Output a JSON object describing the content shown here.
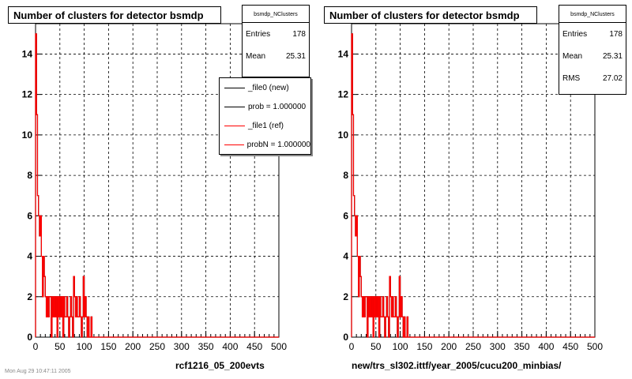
{
  "colors": {
    "new": "#000000",
    "ref": "#ff0000",
    "grid": "#000000"
  },
  "panels": [
    {
      "title": "Number of clusters for detector bsmdp",
      "stats": {
        "name": "bsmdp_NClusters",
        "rows": [
          {
            "label": "Entries",
            "value": "178"
          },
          {
            "label": "Mean",
            "value": "25.31"
          }
        ]
      },
      "legend": [
        {
          "label": "_file0 (new)",
          "color": "#000000"
        },
        {
          "label": "prob = 1.000000",
          "color": "#000000"
        },
        {
          "label": "_file1 (ref)",
          "color": "#ff0000"
        },
        {
          "label": "probN = 1.000000",
          "color": "#ff0000"
        }
      ],
      "footer": "rcf1216_05_200evts"
    },
    {
      "title": "Number of clusters for detector bsmdp",
      "stats": {
        "name": "bsmdp_NClusters",
        "rows": [
          {
            "label": "Entries",
            "value": "178"
          },
          {
            "label": "Mean",
            "value": "25.31"
          },
          {
            "label": "RMS",
            "value": "27.02"
          }
        ]
      },
      "legend": [],
      "footer": "new/trs_sl302.ittf/year_2005/cucu200_minbias/"
    }
  ],
  "faint_text": "Mon Aug 29 10:47:11 2005",
  "chart_data": [
    {
      "type": "histogram",
      "title": "Number of clusters for detector bsmdp",
      "xlim": [
        0,
        500
      ],
      "ylim": [
        0,
        15.5
      ],
      "xticks": [
        0,
        50,
        100,
        150,
        200,
        250,
        300,
        350,
        400,
        450,
        500
      ],
      "yticks": [
        0,
        2,
        4,
        6,
        8,
        10,
        12,
        14
      ],
      "grid": true,
      "bin_width": 2,
      "series": [
        {
          "name": "_file0 (new)",
          "color": "#000000",
          "x": [
            2,
            4,
            6,
            8,
            10,
            12,
            14,
            16,
            18,
            20,
            22,
            24,
            26,
            28,
            30,
            32,
            34,
            36,
            38,
            40,
            42,
            44,
            46,
            48,
            50,
            52,
            54,
            56,
            58,
            60,
            62,
            64,
            66,
            68,
            70,
            72,
            74,
            76,
            78,
            80,
            82,
            84,
            86,
            88,
            90,
            92,
            94,
            96,
            98,
            100,
            102,
            104,
            106,
            108,
            110,
            112,
            114,
            116
          ],
          "y": [
            15,
            11,
            7,
            6,
            5,
            6,
            4,
            2,
            4,
            3,
            2,
            1,
            2,
            1,
            2,
            2,
            0,
            2,
            1,
            2,
            1,
            2,
            0,
            2,
            1,
            2,
            1,
            2,
            0,
            2,
            1,
            1,
            2,
            1,
            0,
            1,
            2,
            1,
            0,
            3,
            2,
            1,
            2,
            1,
            1,
            2,
            1,
            0,
            1,
            3,
            1,
            2,
            1,
            0,
            1,
            0,
            0,
            1
          ]
        },
        {
          "name": "_file1 (ref)",
          "color": "#ff0000",
          "x": [
            2,
            4,
            6,
            8,
            10,
            12,
            14,
            16,
            18,
            20,
            22,
            24,
            26,
            28,
            30,
            32,
            34,
            36,
            38,
            40,
            42,
            44,
            46,
            48,
            50,
            52,
            54,
            56,
            58,
            60,
            62,
            64,
            66,
            68,
            70,
            72,
            74,
            76,
            78,
            80,
            82,
            84,
            86,
            88,
            90,
            92,
            94,
            96,
            98,
            100,
            102,
            104,
            106,
            108,
            110,
            112,
            114,
            116
          ],
          "y": [
            15,
            11,
            7,
            6,
            5,
            6,
            4,
            2,
            4,
            3,
            2,
            1,
            2,
            1,
            2,
            2,
            0,
            2,
            1,
            2,
            1,
            2,
            0,
            2,
            1,
            2,
            1,
            2,
            0,
            2,
            1,
            1,
            2,
            1,
            0,
            1,
            2,
            1,
            0,
            3,
            2,
            1,
            2,
            1,
            1,
            2,
            1,
            0,
            1,
            3,
            1,
            2,
            1,
            0,
            1,
            0,
            0,
            1
          ]
        }
      ]
    },
    {
      "type": "histogram",
      "title": "Number of clusters for detector bsmdp",
      "xlim": [
        0,
        500
      ],
      "ylim": [
        0,
        15.5
      ],
      "xticks": [
        0,
        50,
        100,
        150,
        200,
        250,
        300,
        350,
        400,
        450,
        500
      ],
      "yticks": [
        0,
        2,
        4,
        6,
        8,
        10,
        12,
        14
      ],
      "grid": true,
      "bin_width": 2,
      "series": [
        {
          "name": "_file0 (new)",
          "color": "#000000",
          "x": [
            2,
            4,
            6,
            8,
            10,
            12,
            14,
            16,
            18,
            20,
            22,
            24,
            26,
            28,
            30,
            32,
            34,
            36,
            38,
            40,
            42,
            44,
            46,
            48,
            50,
            52,
            54,
            56,
            58,
            60,
            62,
            64,
            66,
            68,
            70,
            72,
            74,
            76,
            78,
            80,
            82,
            84,
            86,
            88,
            90,
            92,
            94,
            96,
            98,
            100,
            102,
            104,
            106,
            108,
            110,
            112,
            114,
            116
          ],
          "y": [
            15,
            11,
            7,
            6,
            5,
            6,
            4,
            2,
            4,
            3,
            2,
            1,
            2,
            1,
            2,
            2,
            0,
            2,
            1,
            2,
            1,
            2,
            0,
            2,
            1,
            2,
            1,
            2,
            0,
            2,
            1,
            1,
            2,
            1,
            0,
            1,
            2,
            1,
            0,
            3,
            2,
            1,
            2,
            1,
            1,
            2,
            1,
            0,
            1,
            3,
            1,
            2,
            1,
            0,
            1,
            0,
            0,
            1
          ]
        },
        {
          "name": "_file1 (ref)",
          "color": "#ff0000",
          "x": [
            2,
            4,
            6,
            8,
            10,
            12,
            14,
            16,
            18,
            20,
            22,
            24,
            26,
            28,
            30,
            32,
            34,
            36,
            38,
            40,
            42,
            44,
            46,
            48,
            50,
            52,
            54,
            56,
            58,
            60,
            62,
            64,
            66,
            68,
            70,
            72,
            74,
            76,
            78,
            80,
            82,
            84,
            86,
            88,
            90,
            92,
            94,
            96,
            98,
            100,
            102,
            104,
            106,
            108,
            110,
            112,
            114,
            116
          ],
          "y": [
            15,
            11,
            7,
            6,
            5,
            6,
            4,
            2,
            4,
            3,
            2,
            1,
            2,
            1,
            2,
            2,
            0,
            2,
            1,
            2,
            1,
            2,
            0,
            2,
            1,
            2,
            1,
            2,
            0,
            2,
            1,
            1,
            2,
            1,
            0,
            1,
            2,
            1,
            0,
            3,
            2,
            1,
            2,
            1,
            1,
            2,
            1,
            0,
            1,
            3,
            1,
            2,
            1,
            0,
            1,
            0,
            0,
            1
          ]
        }
      ]
    }
  ]
}
